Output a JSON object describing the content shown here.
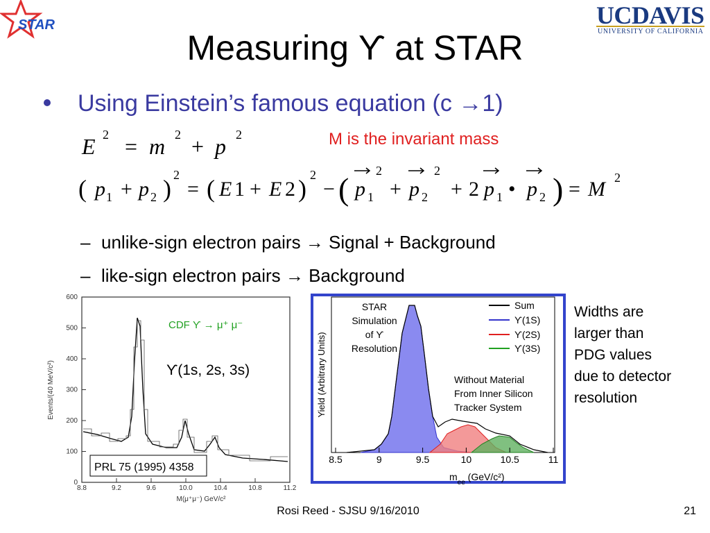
{
  "logos": {
    "left": "STAR",
    "right": "UCDAVIS",
    "right_sub": "UNIVERSITY OF CALIFORNIA"
  },
  "title": "Measuring ϒ  at STAR",
  "bullet": "Using Einstein’s famous equation (c →1)",
  "note": "M is the invariant mass",
  "eq1": [
    "E",
    "2",
    "=",
    "m",
    "2",
    "+",
    "p",
    "2"
  ],
  "eq2": [
    "(",
    "p",
    "1",
    "+",
    "p",
    "2",
    ")",
    "2",
    "=",
    "(",
    "E",
    "1",
    "+",
    "E",
    "2",
    ")",
    "2",
    "−",
    "(",
    "p",
    "1",
    "2",
    "+",
    "p",
    "2",
    "2",
    "+",
    "2",
    "p",
    "1",
    "•",
    "p",
    "2",
    ")",
    "=",
    "M",
    "2"
  ],
  "subitems": [
    "unlike-sign electron pairs → Signal + Background",
    "like-sign electron pairs → Background"
  ],
  "left_figure": {
    "annotation": "CDF ϒ → μ⁺ μ⁻",
    "label": "ϒ(1s, 2s, 3s)",
    "reference": "PRL 75 (1995) 4358",
    "y_axis": "Events/(40 MeV/c²)",
    "x_axis": "M(μ⁺μ⁻) GeV/c²",
    "yticks": [
      "600",
      "500",
      "400",
      "300",
      "200",
      "100",
      "0"
    ],
    "xticks": [
      "8.8",
      "9.2",
      "9.6",
      "10.0",
      "10.4",
      "10.8",
      "11.2"
    ]
  },
  "right_figure": {
    "caption": [
      "STAR",
      "Simulation",
      "of ϒ",
      "Resolution"
    ],
    "legend": [
      "Sum",
      "ϒ(1S)",
      "ϒ(2S)",
      "ϒ(3S)"
    ],
    "note": [
      "Without Material",
      "From  Inner Silicon",
      "Tracker System"
    ],
    "y_axis": "Yield (Arbitrary Units)",
    "x_axis": [
      "m",
      "ee",
      " (GeV/c²)"
    ],
    "xticks": [
      "8.5",
      "9",
      "9.5",
      "10",
      "10.5",
      "11"
    ]
  },
  "side_note": [
    "Widths are",
    "larger than",
    "PDG values",
    "due to detector",
    "resolution"
  ],
  "footer": {
    "text": "Rosi Reed - SJSU 9/16/2010",
    "page": "21"
  }
}
